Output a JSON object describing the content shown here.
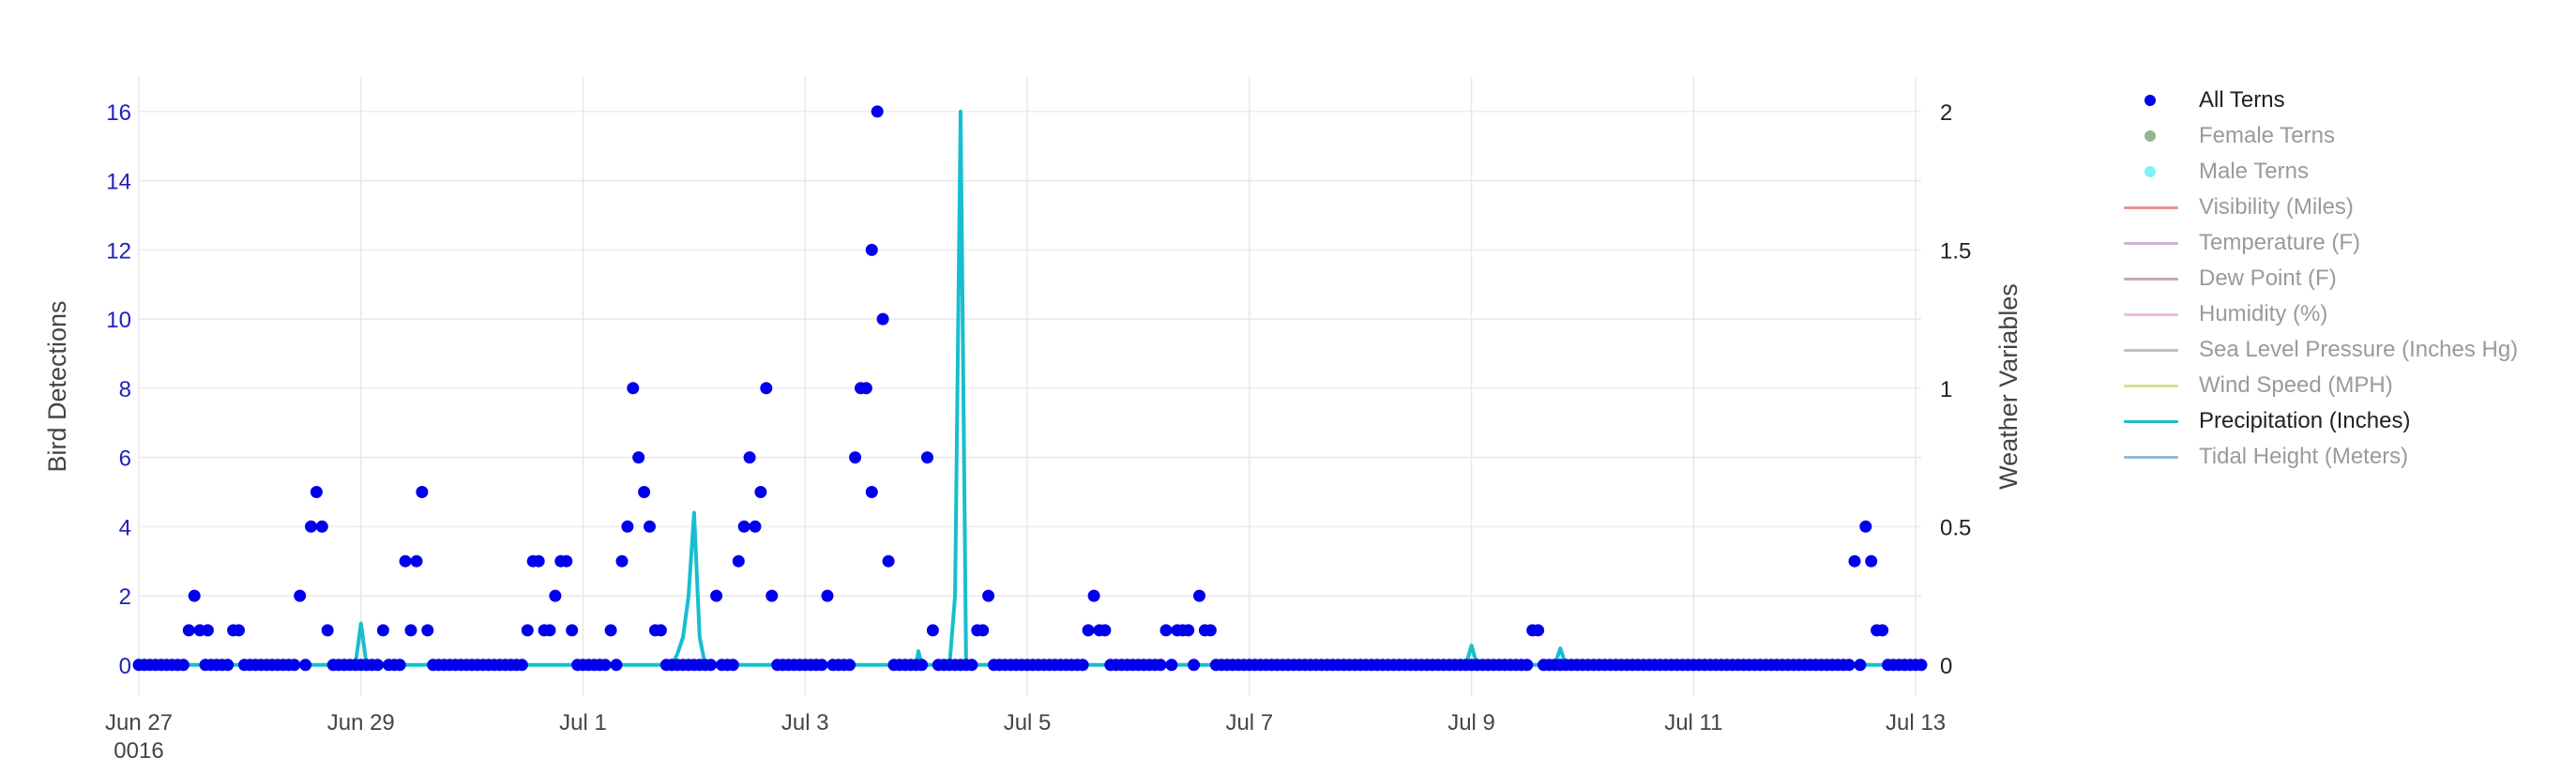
{
  "chart_data": {
    "type": "scatter+line",
    "title": "",
    "y_left": {
      "label": "Bird Detections",
      "range": [
        -0.9,
        17
      ],
      "ticks": [
        0,
        2,
        4,
        6,
        8,
        10,
        12,
        14,
        16
      ],
      "tick_color": "#1f1fbf"
    },
    "y_right": {
      "label": "Weather Variables",
      "range": [
        -0.1125,
        2.125
      ],
      "ticks": [
        0,
        0.5,
        1,
        1.5,
        2
      ],
      "tick_labels": [
        "0",
        "0.5",
        "1",
        "1.5",
        "2"
      ]
    },
    "x": {
      "range_days": [
        0,
        16.05
      ],
      "ticks": [
        0,
        2,
        4,
        6,
        8,
        10,
        12,
        14,
        16
      ],
      "tick_labels": [
        "Jun 27",
        "Jun 29",
        "Jul 1",
        "Jul 3",
        "Jul 5",
        "Jul 7",
        "Jul 9",
        "Jul 11",
        "Jul 13"
      ],
      "year_label": "0016"
    },
    "series": [
      {
        "name": "All Terns",
        "kind": "markers",
        "color": "#0000ee",
        "visible": true,
        "x_start": 0,
        "x_end": 16.05,
        "x_step": 0.05,
        "baseline": 0,
        "points": [
          [
            0.45,
            1
          ],
          [
            0.5,
            2
          ],
          [
            0.55,
            1
          ],
          [
            0.62,
            1
          ],
          [
            0.85,
            1
          ],
          [
            0.9,
            1
          ],
          [
            1.45,
            2
          ],
          [
            1.55,
            4
          ],
          [
            1.6,
            5
          ],
          [
            1.65,
            4
          ],
          [
            1.7,
            1
          ],
          [
            2.2,
            1
          ],
          [
            2.4,
            3
          ],
          [
            2.45,
            1
          ],
          [
            2.5,
            3
          ],
          [
            2.55,
            5
          ],
          [
            2.6,
            1
          ],
          [
            3.5,
            1
          ],
          [
            3.55,
            3
          ],
          [
            3.6,
            3
          ],
          [
            3.65,
            1
          ],
          [
            3.7,
            1
          ],
          [
            3.75,
            2
          ],
          [
            3.8,
            3
          ],
          [
            3.85,
            3
          ],
          [
            3.9,
            1
          ],
          [
            4.25,
            1
          ],
          [
            4.35,
            3
          ],
          [
            4.4,
            4
          ],
          [
            4.45,
            8
          ],
          [
            4.5,
            6
          ],
          [
            4.55,
            5
          ],
          [
            4.6,
            4
          ],
          [
            4.65,
            1
          ],
          [
            4.7,
            1
          ],
          [
            5.2,
            2
          ],
          [
            5.4,
            3
          ],
          [
            5.45,
            4
          ],
          [
            5.5,
            6
          ],
          [
            5.55,
            4
          ],
          [
            5.6,
            5
          ],
          [
            5.65,
            8
          ],
          [
            5.7,
            2
          ],
          [
            6.2,
            2
          ],
          [
            6.45,
            6
          ],
          [
            6.5,
            8
          ],
          [
            6.55,
            8
          ],
          [
            6.6,
            5
          ],
          [
            6.65,
            16
          ],
          [
            6.6,
            12
          ],
          [
            6.7,
            10
          ],
          [
            6.75,
            3
          ],
          [
            7.1,
            6
          ],
          [
            7.15,
            1
          ],
          [
            7.55,
            1
          ],
          [
            7.6,
            1
          ],
          [
            7.65,
            2
          ],
          [
            8.6,
            2
          ],
          [
            8.55,
            1
          ],
          [
            8.65,
            1
          ],
          [
            8.7,
            1
          ],
          [
            9.25,
            1
          ],
          [
            9.35,
            1
          ],
          [
            9.4,
            1
          ],
          [
            9.45,
            1
          ],
          [
            9.55,
            2
          ],
          [
            9.6,
            1
          ],
          [
            9.65,
            1
          ],
          [
            12.55,
            1
          ],
          [
            12.6,
            1
          ],
          [
            15.45,
            3
          ],
          [
            15.55,
            4
          ],
          [
            15.6,
            3
          ],
          [
            15.65,
            1
          ],
          [
            15.7,
            1
          ]
        ]
      },
      {
        "name": "Female Terns",
        "kind": "markers",
        "color": "#2e6b2e",
        "visible": false
      },
      {
        "name": "Male Terns",
        "kind": "markers",
        "color": "#00e5ee",
        "visible": false
      },
      {
        "name": "Visibility (Miles)",
        "kind": "line",
        "color": "#d62728",
        "visible": false
      },
      {
        "name": "Temperature (F)",
        "kind": "line",
        "color": "#9467bd",
        "visible": false
      },
      {
        "name": "Dew Point (F)",
        "kind": "line",
        "color": "#8c564b",
        "visible": false
      },
      {
        "name": "Humidity (%)",
        "kind": "line",
        "color": "#e377c2",
        "visible": false
      },
      {
        "name": "Sea Level Pressure (Inches Hg)",
        "kind": "line",
        "color": "#7f7f7f",
        "visible": false
      },
      {
        "name": "Wind Speed (MPH)",
        "kind": "line",
        "color": "#bcbd22",
        "visible": false
      },
      {
        "name": "Precipitation (Inches)",
        "kind": "line",
        "color": "#17becf",
        "visible": true,
        "axis": "right",
        "x": [
          0,
          1.9,
          1.95,
          2.0,
          2.05,
          2.1,
          3.9,
          3.95,
          4.0,
          4.05,
          4.1,
          4.5,
          4.7,
          4.8,
          4.85,
          4.9,
          4.95,
          5.0,
          5.05,
          5.1,
          7.0,
          7.02,
          7.05,
          7.1,
          7.15,
          7.3,
          7.35,
          7.4,
          7.45,
          11.9,
          11.95,
          12.0,
          12.05,
          12.1,
          12.75,
          12.8,
          12.85,
          16.05
        ],
        "y": [
          0,
          0,
          0,
          0.15,
          0,
          0,
          0,
          0,
          0,
          0,
          0,
          0,
          0,
          0,
          0.04,
          0.1,
          0.25,
          0.55,
          0.1,
          0,
          0,
          0.05,
          0,
          0,
          0,
          0,
          0.25,
          2.0,
          0,
          0,
          0,
          0.07,
          0,
          0,
          0,
          0.06,
          0,
          0
        ]
      },
      {
        "name": "Tidal Height (Meters)",
        "kind": "line",
        "color": "#1f77b4",
        "visible": false
      }
    ]
  }
}
